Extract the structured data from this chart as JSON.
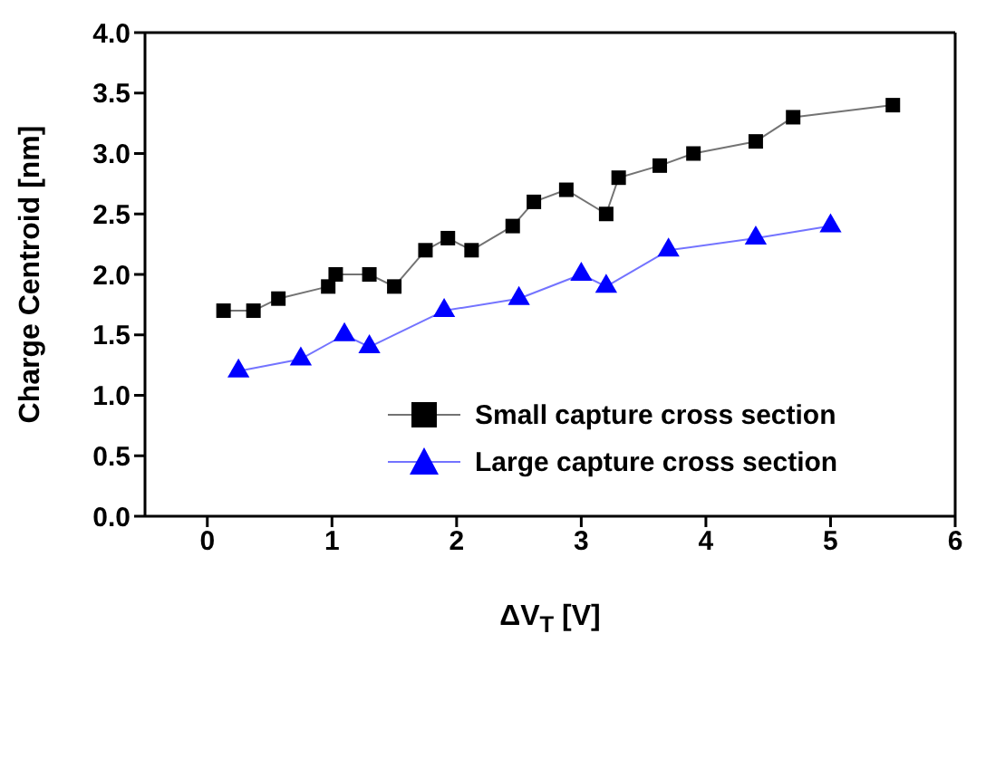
{
  "chart_data": {
    "type": "line",
    "xlabel": "ΔV$_{T}$ [V]",
    "ylabel": "Charge Centroid [nm]",
    "xlim": [
      -0.5,
      6
    ],
    "xticks": [
      0,
      1,
      2,
      3,
      4,
      5,
      6
    ],
    "ylim": [
      0,
      4
    ],
    "yticks": [
      {
        "value": 0,
        "label": "0.0"
      },
      0.5,
      {
        "value": 1,
        "label": "1.0"
      },
      1.5,
      {
        "value": 2,
        "label": "2.0"
      },
      2.5,
      {
        "value": 3,
        "label": "3.0"
      },
      3.5,
      {
        "value": 4,
        "label": "4.0"
      }
    ],
    "legend": "bottom right",
    "series": [
      {
        "name": "Small capture cross section",
        "color": "#000000",
        "marker": "square",
        "x": [
          0.13,
          0.37,
          0.57,
          0.97,
          1.03,
          1.3,
          1.5,
          1.75,
          1.93,
          2.12,
          2.45,
          2.62,
          2.88,
          3.2,
          3.3,
          3.63,
          3.9,
          4.4,
          4.7,
          5.5
        ],
        "values": [
          1.7,
          1.7,
          1.8,
          1.9,
          2.0,
          2.0,
          1.9,
          2.2,
          2.3,
          2.2,
          2.4,
          2.6,
          2.7,
          2.5,
          2.8,
          2.9,
          3.0,
          3.1,
          3.3,
          3.4
        ]
      },
      {
        "name": "Large capture cross section",
        "color": "#0000ff",
        "marker": "triangle",
        "x": [
          0.25,
          0.75,
          1.1,
          1.3,
          1.9,
          2.5,
          3.0,
          3.2,
          3.7,
          4.4,
          5.0
        ],
        "values": [
          1.2,
          1.3,
          1.5,
          1.4,
          1.7,
          1.8,
          2.0,
          1.9,
          2.2,
          2.3,
          2.4
        ]
      }
    ]
  }
}
